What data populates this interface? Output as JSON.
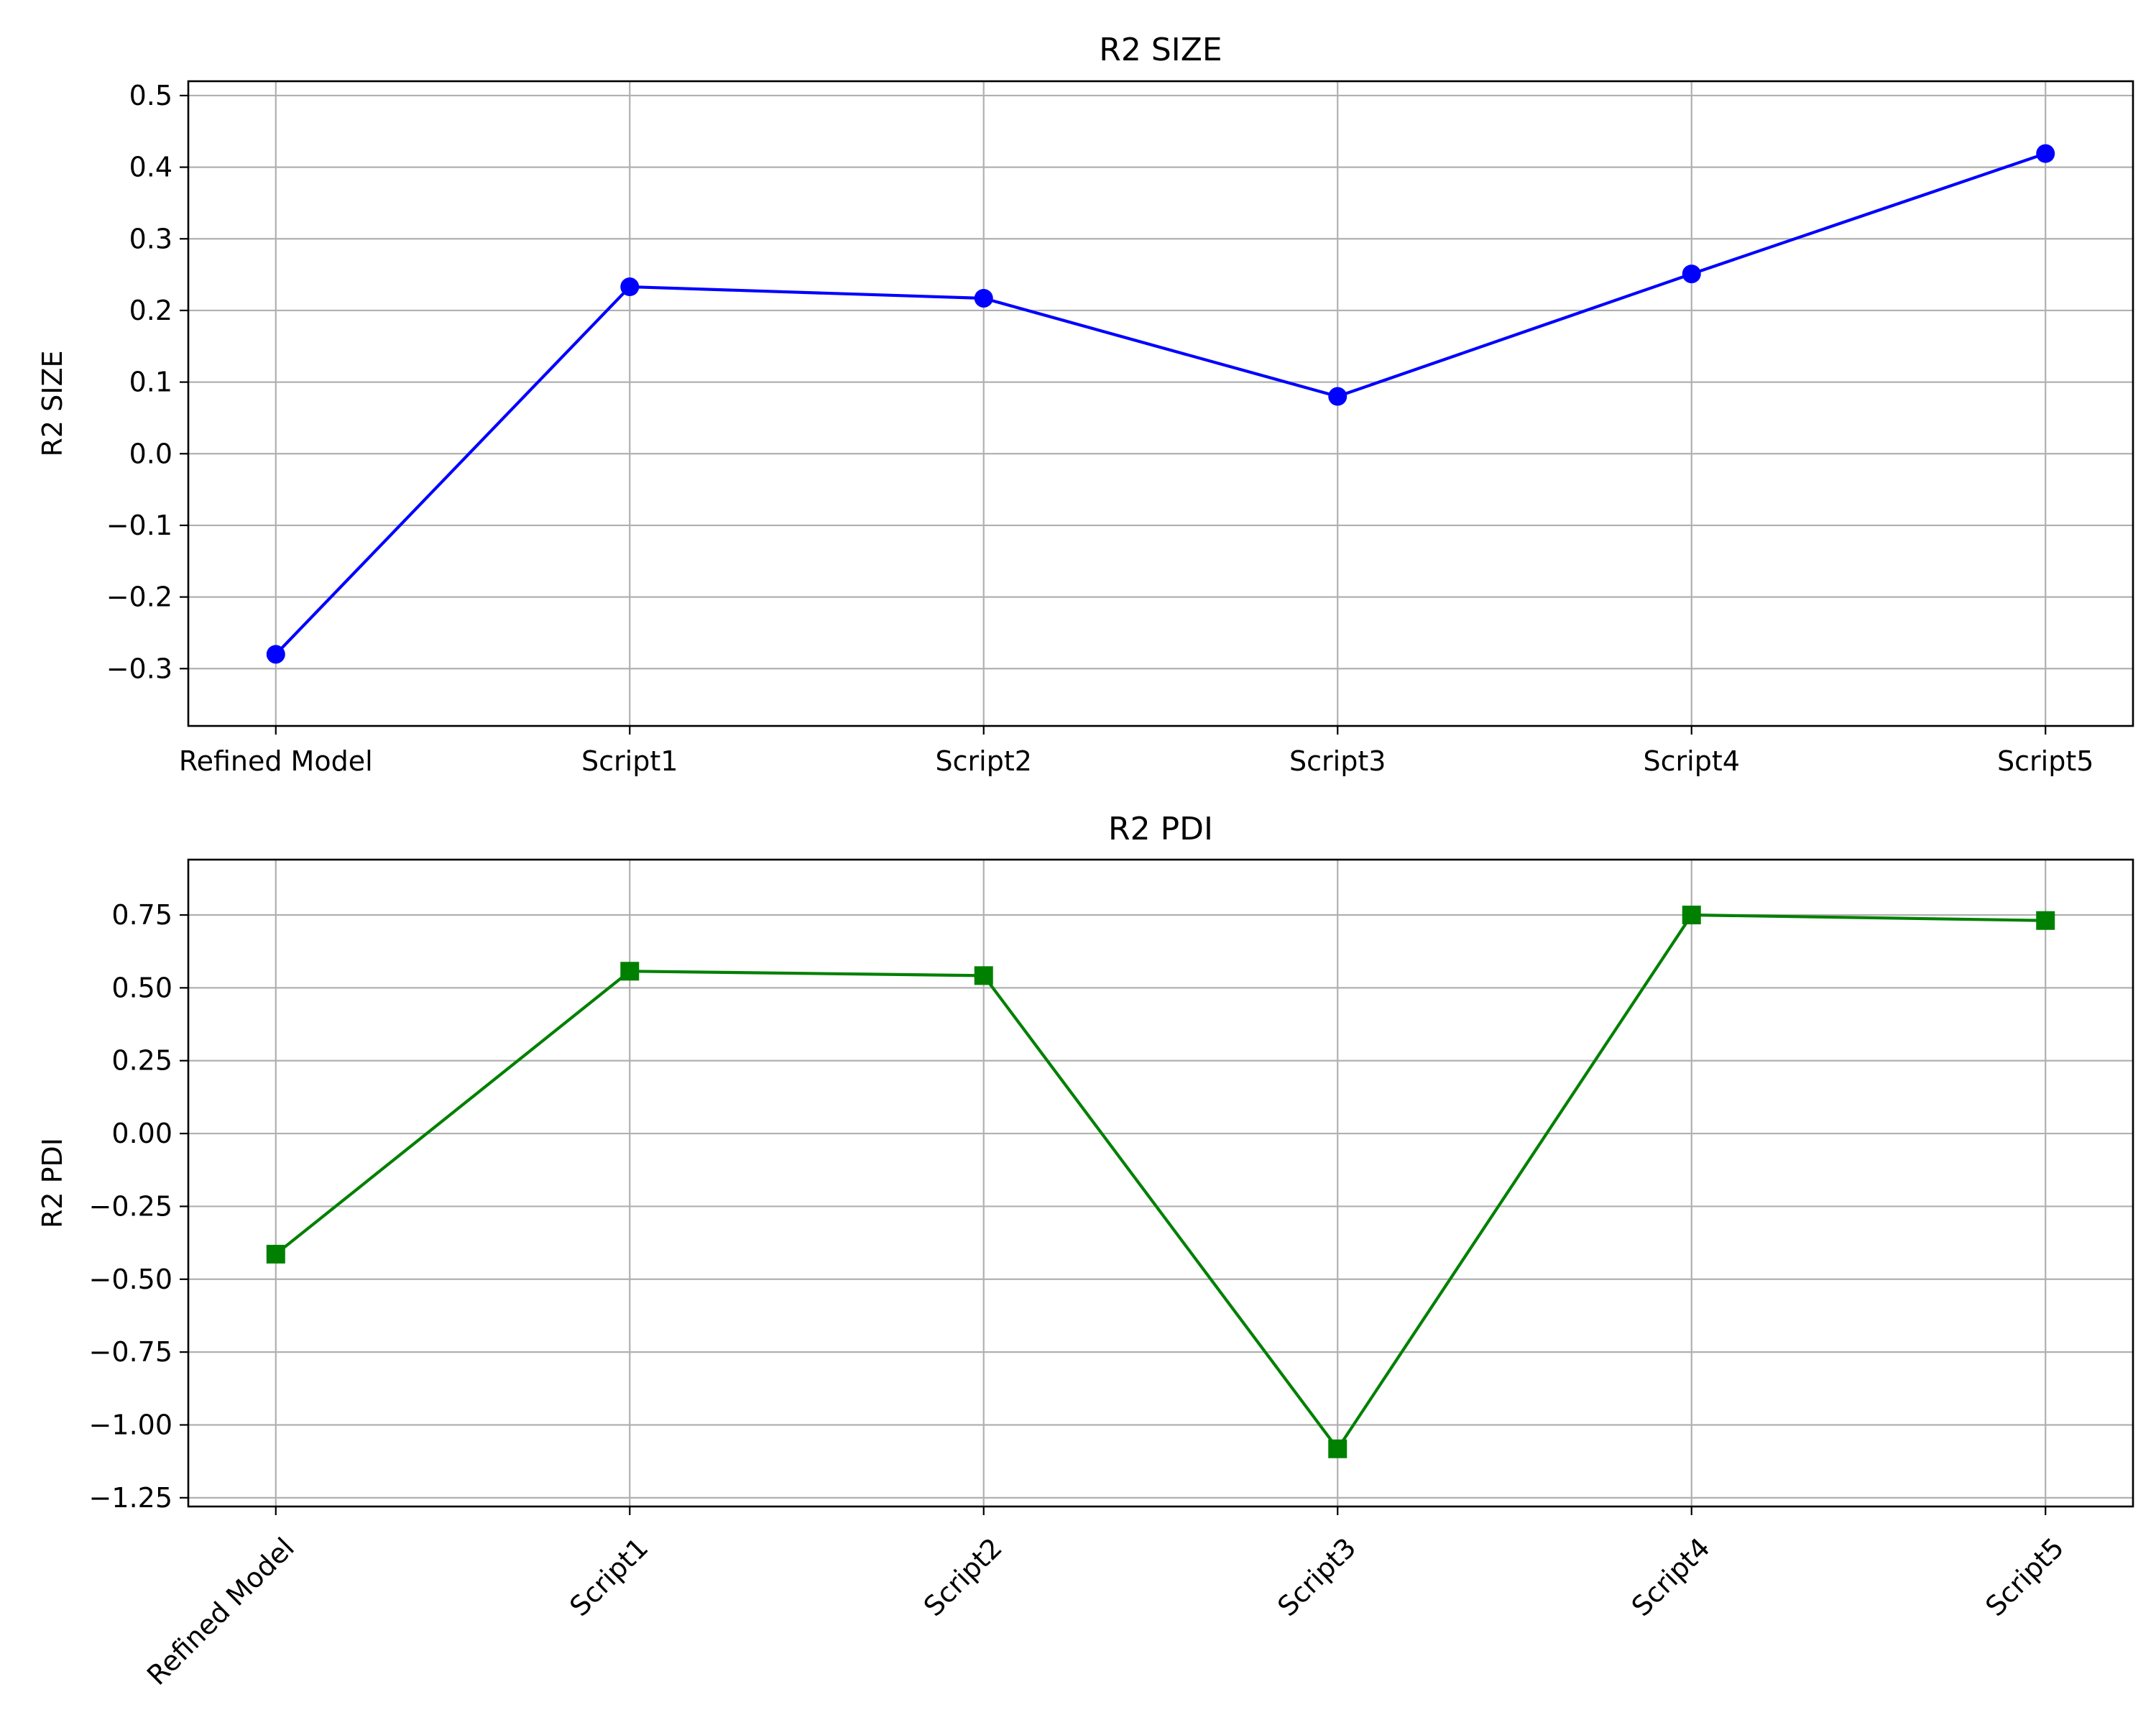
{
  "chart_data": [
    {
      "type": "line",
      "title": "R2 SIZE",
      "xlabel": "",
      "ylabel": "R2 SIZE",
      "categories": [
        "Refined Model",
        "Script1",
        "Script2",
        "Script3",
        "Script4",
        "Script5"
      ],
      "series": [
        {
          "values": [
            -0.28,
            0.233,
            0.217,
            0.08,
            0.251,
            0.419
          ],
          "color": "#0000ff",
          "marker": "circle"
        }
      ],
      "ylim": [
        -0.38,
        0.52
      ],
      "yticks": [
        0.5,
        0.4,
        0.3,
        0.2,
        0.1,
        0.0,
        -0.1,
        -0.2,
        -0.3
      ],
      "ytick_labels": [
        "0.5",
        "0.4",
        "0.3",
        "0.2",
        "0.1",
        "0.0",
        "−0.1",
        "−0.2",
        "−0.3"
      ],
      "xtick_rotation": 0,
      "grid": true
    },
    {
      "type": "line",
      "title": "R2 PDI",
      "xlabel": "",
      "ylabel": "R2 PDI",
      "categories": [
        "Refined Model",
        "Script1",
        "Script2",
        "Script3",
        "Script4",
        "Script5"
      ],
      "series": [
        {
          "values": [
            -0.414,
            0.557,
            0.542,
            -1.082,
            0.75,
            0.731
          ],
          "color": "#008000",
          "marker": "square"
        }
      ],
      "ylim": [
        -1.28,
        0.94
      ],
      "yticks": [
        0.75,
        0.5,
        0.25,
        0.0,
        -0.25,
        -0.5,
        -0.75,
        -1.0,
        -1.25
      ],
      "ytick_labels": [
        "0.75",
        "0.50",
        "0.25",
        "0.00",
        "−0.25",
        "−0.50",
        "−0.75",
        "−1.00",
        "−1.25"
      ],
      "xtick_rotation": -45,
      "grid": true
    }
  ]
}
